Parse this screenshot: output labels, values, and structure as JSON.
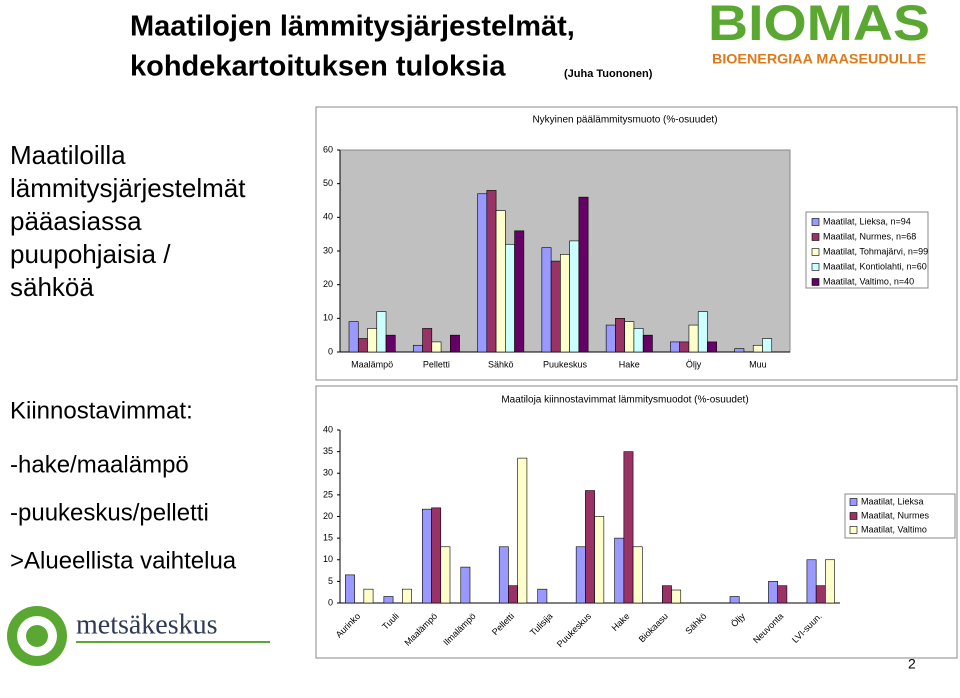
{
  "header": {
    "title_line1": "Maatilojen lämmitysjärjestelmät,",
    "title_line2": "kohdekartoituksen tuloksia",
    "author": "(Juha Tuononen)"
  },
  "logo": {
    "name": "BIOMAS",
    "tagline": "BIOENERGIAA MAASEUDULLE",
    "partner": "metsäkeskus"
  },
  "left_top": [
    "Maatiloilla",
    "lämmitysjärjestelmät",
    "pääasiassa",
    "puupohjaisia /",
    "sähköä"
  ],
  "left_bottom": [
    "Kiinnostavimmat:",
    "-hake/maalämpö",
    "-puukeskus/pelletti",
    ">Alueellista vaihtelua"
  ],
  "page_number": "2",
  "chart_data": [
    {
      "type": "bar",
      "title": "Nykyinen päälämmitysmuoto (%-osuudet)",
      "categories": [
        "Maalämpö",
        "Pelletti",
        "Sähkö",
        "Puukeskus",
        "Hake",
        "Öljy",
        "Muu"
      ],
      "series": [
        {
          "name": "Maatilat, Lieksa, n=94",
          "color": "#9999ff",
          "values": [
            9,
            2,
            47,
            31,
            8,
            3,
            1
          ]
        },
        {
          "name": "Maatilat, Nurmes, n=68",
          "color": "#993366",
          "values": [
            4,
            7,
            48,
            27,
            10,
            3,
            0
          ]
        },
        {
          "name": "Maatilat, Tohmajärvi, n=99",
          "color": "#ffffcc",
          "values": [
            7,
            3,
            42,
            29,
            9,
            8,
            2
          ]
        },
        {
          "name": "Maatilat, Kontiolahti, n=60",
          "color": "#ccffff",
          "values": [
            12,
            0,
            32,
            33,
            7,
            12,
            4
          ]
        },
        {
          "name": "Maatilat, Valtimo, n=40",
          "color": "#660066",
          "values": [
            5,
            5,
            36,
            46,
            5,
            3,
            0
          ]
        }
      ],
      "ylim": [
        0,
        60
      ],
      "yticks": [
        0,
        10,
        20,
        30,
        40,
        50,
        60
      ],
      "grid": false,
      "legend": "right"
    },
    {
      "type": "bar",
      "title": "Maatiloja kiinnostavimmat lämmitysmuodot (%-osuudet)",
      "categories": [
        "Aurinko",
        "Tuuli",
        "Maalämpö",
        "Ilmalämpö",
        "Pelletti",
        "Tulisija",
        "Puukeskus",
        "Hake",
        "Biokaasu",
        "Sähkö",
        "Öljy",
        "Neuvonta",
        "LVI-suun."
      ],
      "series": [
        {
          "name": "Maatilat, Lieksa",
          "color": "#9999ff",
          "values": [
            6.5,
            1.5,
            21.7,
            8.3,
            13,
            3.2,
            13,
            15,
            0,
            0,
            1.5,
            5,
            10
          ]
        },
        {
          "name": "Maatilat, Nurmes",
          "color": "#993366",
          "values": [
            0,
            0,
            22,
            0,
            4,
            0,
            26,
            35,
            4,
            0,
            0,
            4,
            4
          ]
        },
        {
          "name": "Maatilat, Valtimo",
          "color": "#ffffcc",
          "values": [
            3.2,
            3.2,
            13,
            0,
            33.5,
            0,
            20,
            13,
            3,
            0,
            0,
            0,
            10
          ]
        }
      ],
      "ylim": [
        0,
        40
      ],
      "yticks": [
        0,
        5,
        10,
        15,
        20,
        25,
        30,
        35,
        40
      ],
      "grid": false,
      "legend": "right"
    }
  ]
}
